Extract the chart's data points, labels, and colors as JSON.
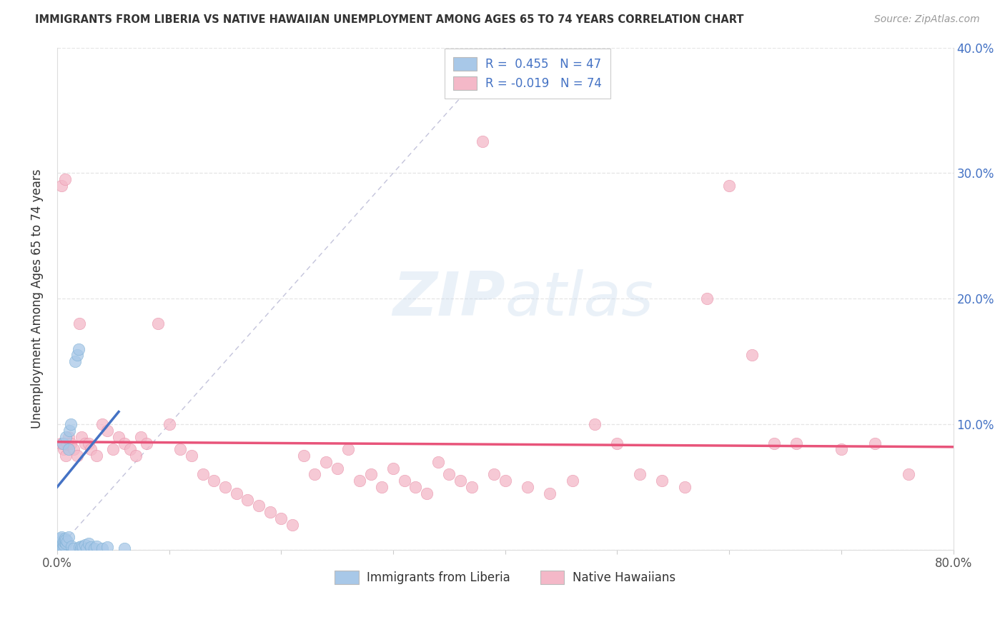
{
  "title": "IMMIGRANTS FROM LIBERIA VS NATIVE HAWAIIAN UNEMPLOYMENT AMONG AGES 65 TO 74 YEARS CORRELATION CHART",
  "source": "Source: ZipAtlas.com",
  "ylabel": "Unemployment Among Ages 65 to 74 years",
  "xlim": [
    0,
    0.8
  ],
  "ylim": [
    0,
    0.4
  ],
  "color_blue": "#A8C8E8",
  "color_blue_edge": "#7BAFD4",
  "color_pink": "#F4B8C8",
  "color_pink_edge": "#E890A8",
  "trend_blue": "#4472C4",
  "trend_pink": "#E8547A",
  "blue_r": 0.455,
  "blue_n": 47,
  "pink_r": -0.019,
  "pink_n": 74,
  "accent_color": "#4472C4",
  "blue_points": [
    [
      0.001,
      0.002
    ],
    [
      0.001,
      0.005
    ],
    [
      0.002,
      0.001
    ],
    [
      0.002,
      0.003
    ],
    [
      0.002,
      0.006
    ],
    [
      0.002,
      0.007
    ],
    [
      0.003,
      0.002
    ],
    [
      0.003,
      0.004
    ],
    [
      0.003,
      0.006
    ],
    [
      0.003,
      0.008
    ],
    [
      0.003,
      0.009
    ],
    [
      0.004,
      0.003
    ],
    [
      0.004,
      0.007
    ],
    [
      0.004,
      0.01
    ],
    [
      0.005,
      0.002
    ],
    [
      0.005,
      0.005
    ],
    [
      0.005,
      0.085
    ],
    [
      0.006,
      0.004
    ],
    [
      0.006,
      0.007
    ],
    [
      0.007,
      0.006
    ],
    [
      0.007,
      0.009
    ],
    [
      0.008,
      0.005
    ],
    [
      0.008,
      0.008
    ],
    [
      0.008,
      0.09
    ],
    [
      0.009,
      0.007
    ],
    [
      0.01,
      0.08
    ],
    [
      0.01,
      0.01
    ],
    [
      0.011,
      0.095
    ],
    [
      0.012,
      0.1
    ],
    [
      0.013,
      0.003
    ],
    [
      0.015,
      0.001
    ],
    [
      0.016,
      0.15
    ],
    [
      0.018,
      0.155
    ],
    [
      0.019,
      0.16
    ],
    [
      0.02,
      0.002
    ],
    [
      0.021,
      0.001
    ],
    [
      0.022,
      0.003
    ],
    [
      0.023,
      0.002
    ],
    [
      0.025,
      0.004
    ],
    [
      0.026,
      0.001
    ],
    [
      0.028,
      0.005
    ],
    [
      0.03,
      0.002
    ],
    [
      0.033,
      0.001
    ],
    [
      0.035,
      0.003
    ],
    [
      0.04,
      0.001
    ],
    [
      0.045,
      0.002
    ],
    [
      0.06,
      0.001
    ]
  ],
  "pink_points": [
    [
      0.003,
      0.085
    ],
    [
      0.004,
      0.29
    ],
    [
      0.005,
      0.085
    ],
    [
      0.006,
      0.08
    ],
    [
      0.007,
      0.295
    ],
    [
      0.008,
      0.075
    ],
    [
      0.009,
      0.085
    ],
    [
      0.01,
      0.09
    ],
    [
      0.012,
      0.085
    ],
    [
      0.015,
      0.08
    ],
    [
      0.018,
      0.075
    ],
    [
      0.02,
      0.18
    ],
    [
      0.022,
      0.09
    ],
    [
      0.025,
      0.085
    ],
    [
      0.028,
      0.085
    ],
    [
      0.03,
      0.08
    ],
    [
      0.035,
      0.075
    ],
    [
      0.04,
      0.1
    ],
    [
      0.045,
      0.095
    ],
    [
      0.05,
      0.08
    ],
    [
      0.055,
      0.09
    ],
    [
      0.06,
      0.085
    ],
    [
      0.065,
      0.08
    ],
    [
      0.07,
      0.075
    ],
    [
      0.075,
      0.09
    ],
    [
      0.08,
      0.085
    ],
    [
      0.09,
      0.18
    ],
    [
      0.1,
      0.1
    ],
    [
      0.11,
      0.08
    ],
    [
      0.12,
      0.075
    ],
    [
      0.13,
      0.06
    ],
    [
      0.14,
      0.055
    ],
    [
      0.15,
      0.05
    ],
    [
      0.16,
      0.045
    ],
    [
      0.17,
      0.04
    ],
    [
      0.18,
      0.035
    ],
    [
      0.19,
      0.03
    ],
    [
      0.2,
      0.025
    ],
    [
      0.21,
      0.02
    ],
    [
      0.22,
      0.075
    ],
    [
      0.23,
      0.06
    ],
    [
      0.24,
      0.07
    ],
    [
      0.25,
      0.065
    ],
    [
      0.26,
      0.08
    ],
    [
      0.27,
      0.055
    ],
    [
      0.28,
      0.06
    ],
    [
      0.29,
      0.05
    ],
    [
      0.3,
      0.065
    ],
    [
      0.31,
      0.055
    ],
    [
      0.32,
      0.05
    ],
    [
      0.33,
      0.045
    ],
    [
      0.34,
      0.07
    ],
    [
      0.35,
      0.06
    ],
    [
      0.36,
      0.055
    ],
    [
      0.37,
      0.05
    ],
    [
      0.38,
      0.325
    ],
    [
      0.39,
      0.06
    ],
    [
      0.4,
      0.055
    ],
    [
      0.42,
      0.05
    ],
    [
      0.44,
      0.045
    ],
    [
      0.46,
      0.055
    ],
    [
      0.48,
      0.1
    ],
    [
      0.5,
      0.085
    ],
    [
      0.52,
      0.06
    ],
    [
      0.54,
      0.055
    ],
    [
      0.56,
      0.05
    ],
    [
      0.58,
      0.2
    ],
    [
      0.6,
      0.29
    ],
    [
      0.62,
      0.155
    ],
    [
      0.64,
      0.085
    ],
    [
      0.66,
      0.085
    ],
    [
      0.7,
      0.08
    ],
    [
      0.73,
      0.085
    ],
    [
      0.76,
      0.06
    ]
  ],
  "blue_trend_x": [
    0.0,
    0.055
  ],
  "blue_trend_y": [
    0.05,
    0.11
  ],
  "pink_trend_x": [
    0.0,
    0.8
  ],
  "pink_trend_y": [
    0.086,
    0.082
  ]
}
